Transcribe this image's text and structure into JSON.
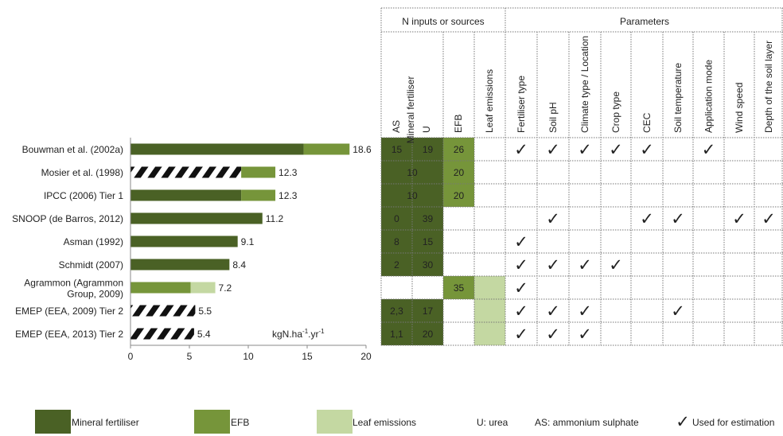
{
  "colors": {
    "mineral": "#4a6125",
    "efb": "#76953a",
    "leaf": "#c4d8a2",
    "check": "#3ea12b",
    "grid": "#777777"
  },
  "headers": {
    "n_inputs": "N inputs or sources",
    "parameters": "Parameters",
    "col_as": "AS",
    "col_mineral": "Mineral fertiliser",
    "col_u": "U",
    "col_efb": "EFB",
    "col_leaf": "Leaf emissions",
    "params": [
      "Fertiliser type",
      "Soil pH",
      "Climate type / Location",
      "Crop type",
      "CEC",
      "Soil temperature",
      "Application mode",
      "Wind speed",
      "Depth of the soil layer"
    ]
  },
  "unit_label": "kgN.ha-1.yr-1",
  "check_symbol": "✓",
  "chart_data": {
    "type": "bar",
    "orientation": "horizontal",
    "stacked": true,
    "xlim": [
      0,
      20
    ],
    "xticks": [
      "0",
      "5",
      "10",
      "15",
      "20"
    ],
    "categories": [
      "Bouwman et al. (2002a)",
      "Mosier et al. (1998)",
      "IPCC (2006) Tier 1",
      "SNOOP (de Barros, 2012)",
      "Asman (1992)",
      "Schmidt (2007)",
      "Agrammon (Agrammon Group, 2009)",
      "EMEP (EEA, 2009) Tier 2",
      "EMEP (EEA, 2013) Tier 2"
    ],
    "category_lines": [
      [
        "Bouwman et al. (2002a)"
      ],
      [
        "Mosier et al. (1998)"
      ],
      [
        "IPCC (2006) Tier 1"
      ],
      [
        "SNOOP (de Barros, 2012)"
      ],
      [
        "Asman (1992)"
      ],
      [
        "Schmidt (2007)"
      ],
      [
        "Agrammon (Agrammon",
        "Group, 2009)"
      ],
      [
        "EMEP (EEA, 2009) Tier 2"
      ],
      [
        "EMEP (EEA, 2013) Tier 2"
      ]
    ],
    "series": [
      {
        "name": "Mineral fertiliser",
        "values": [
          14.7,
          9.4,
          9.4,
          11.2,
          9.1,
          8.4,
          0,
          5.5,
          5.4
        ]
      },
      {
        "name": "EFB",
        "values": [
          3.9,
          2.9,
          2.9,
          0,
          0,
          0,
          5.1,
          0,
          0
        ]
      },
      {
        "name": "Leaf emissions",
        "values": [
          0,
          0,
          0,
          0,
          0,
          0,
          2.1,
          0,
          0
        ]
      }
    ],
    "hatched_mineral": [
      false,
      true,
      false,
      false,
      false,
      false,
      false,
      true,
      true
    ],
    "totals": [
      "18.6",
      "12.3",
      "12.3",
      "11.2",
      "9.1",
      "8.4",
      "7.2",
      "5.5",
      "5.4"
    ],
    "table_rows": [
      {
        "cells": [
          {
            "text": "15",
            "fill": "mineral"
          },
          {
            "text": "19",
            "fill": "mineral"
          },
          {
            "text": "26",
            "fill": "efb"
          },
          {
            "text": "",
            "fill": ""
          }
        ],
        "merged_mineral": false,
        "checks": [
          1,
          1,
          1,
          1,
          1,
          0,
          1,
          0,
          0
        ]
      },
      {
        "cells": [
          {
            "text": "10",
            "fill": "mineral"
          },
          {
            "text": "",
            "fill": "mineral"
          },
          {
            "text": "20",
            "fill": "efb"
          },
          {
            "text": "",
            "fill": ""
          }
        ],
        "merged_mineral": true,
        "checks": [
          0,
          0,
          0,
          0,
          0,
          0,
          0,
          0,
          0
        ]
      },
      {
        "cells": [
          {
            "text": "10",
            "fill": "mineral"
          },
          {
            "text": "",
            "fill": "mineral"
          },
          {
            "text": "20",
            "fill": "efb"
          },
          {
            "text": "",
            "fill": ""
          }
        ],
        "merged_mineral": true,
        "checks": [
          0,
          0,
          0,
          0,
          0,
          0,
          0,
          0,
          0
        ]
      },
      {
        "cells": [
          {
            "text": "0",
            "fill": "mineral"
          },
          {
            "text": "39",
            "fill": "mineral"
          },
          {
            "text": "",
            "fill": ""
          },
          {
            "text": "",
            "fill": ""
          }
        ],
        "merged_mineral": false,
        "checks": [
          0,
          1,
          0,
          0,
          1,
          1,
          0,
          1,
          1
        ]
      },
      {
        "cells": [
          {
            "text": "8",
            "fill": "mineral"
          },
          {
            "text": "15",
            "fill": "mineral"
          },
          {
            "text": "",
            "fill": ""
          },
          {
            "text": "",
            "fill": ""
          }
        ],
        "merged_mineral": false,
        "checks": [
          1,
          0,
          0,
          0,
          0,
          0,
          0,
          0,
          0
        ]
      },
      {
        "cells": [
          {
            "text": "2",
            "fill": "mineral"
          },
          {
            "text": "30",
            "fill": "mineral"
          },
          {
            "text": "",
            "fill": ""
          },
          {
            "text": "",
            "fill": ""
          }
        ],
        "merged_mineral": false,
        "checks": [
          1,
          1,
          1,
          1,
          0,
          0,
          0,
          0,
          0
        ]
      },
      {
        "cells": [
          {
            "text": "",
            "fill": ""
          },
          {
            "text": "",
            "fill": ""
          },
          {
            "text": "35",
            "fill": "efb"
          },
          {
            "text": "",
            "fill": "leaf"
          }
        ],
        "merged_mineral": false,
        "checks": [
          1,
          0,
          0,
          0,
          0,
          0,
          0,
          0,
          0
        ]
      },
      {
        "cells": [
          {
            "text": "2,3",
            "fill": "mineral"
          },
          {
            "text": "17",
            "fill": "mineral"
          },
          {
            "text": "",
            "fill": ""
          },
          {
            "text": "",
            "fill": "leaf"
          }
        ],
        "merged_mineral": false,
        "checks": [
          1,
          1,
          1,
          0,
          0,
          1,
          0,
          0,
          0
        ]
      },
      {
        "cells": [
          {
            "text": "1,1",
            "fill": "mineral"
          },
          {
            "text": "20",
            "fill": "mineral"
          },
          {
            "text": "",
            "fill": ""
          },
          {
            "text": "",
            "fill": "leaf"
          }
        ],
        "merged_mineral": false,
        "checks": [
          1,
          1,
          1,
          0,
          0,
          0,
          0,
          0,
          0
        ]
      }
    ]
  },
  "legend": {
    "mineral": "Mineral fertiliser",
    "efb": "EFB",
    "leaf": "Leaf emissions",
    "urea": "U: urea",
    "as": "AS: ammonium sulphate",
    "used": "Used for estimation"
  }
}
